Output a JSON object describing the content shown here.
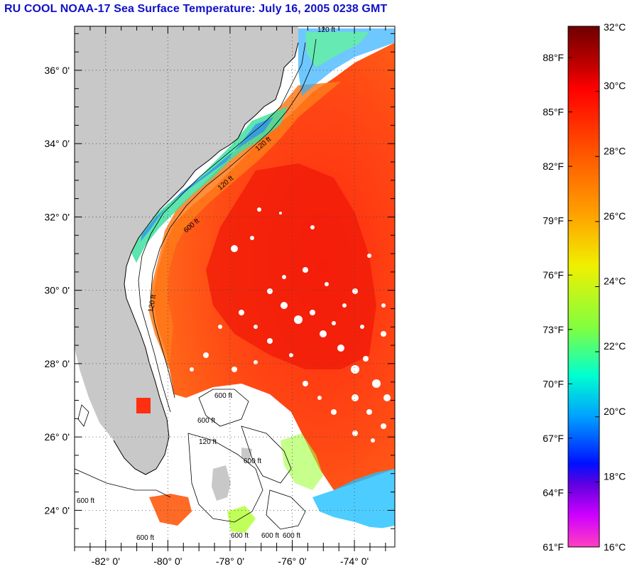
{
  "title": "RU COOL  NOAA-17  Sea Surface Temperature:  July 16, 2005 0238 GMT",
  "map": {
    "lat_labels": [
      {
        "lat": 36,
        "text": "36° 0'"
      },
      {
        "lat": 34,
        "text": "34° 0'"
      },
      {
        "lat": 32,
        "text": "32° 0'"
      },
      {
        "lat": 30,
        "text": "30° 0'"
      },
      {
        "lat": 28,
        "text": "28° 0'"
      },
      {
        "lat": 26,
        "text": "26° 0'"
      },
      {
        "lat": 24,
        "text": "24° 0'"
      }
    ],
    "lon_labels": [
      {
        "lon": -82,
        "text": "-82° 0'"
      },
      {
        "lon": -80,
        "text": "-80° 0'"
      },
      {
        "lon": -78,
        "text": "-78° 0'"
      },
      {
        "lon": -76,
        "text": "-76° 0'"
      },
      {
        "lon": -74,
        "text": "-74° 0'"
      }
    ],
    "lon_range": [
      -83.0,
      -72.7
    ],
    "lat_range": [
      23.0,
      37.2
    ],
    "contour_labels": [
      "120 ft",
      "120 ft",
      "120 ft",
      "600 ft",
      "120 ft",
      "600 ft",
      "600 ft",
      "600 ft",
      "120 ft",
      "600 ft",
      "600 ft",
      "600 ft",
      "600 ft",
      "600 ft"
    ],
    "colors": {
      "land": "#c8c8c8",
      "cloud": "#ffffff",
      "grid": "#555555"
    }
  },
  "colorbar": {
    "celsius_labels": [
      "32°C",
      "30°C",
      "28°C",
      "26°C",
      "24°C",
      "22°C",
      "20°C",
      "18°C",
      "16°C"
    ],
    "fahrenheit_labels": [
      "88°F",
      "85°F",
      "82°F",
      "79°F",
      "76°F",
      "73°F",
      "70°F",
      "67°F",
      "64°F",
      "61°F"
    ]
  }
}
